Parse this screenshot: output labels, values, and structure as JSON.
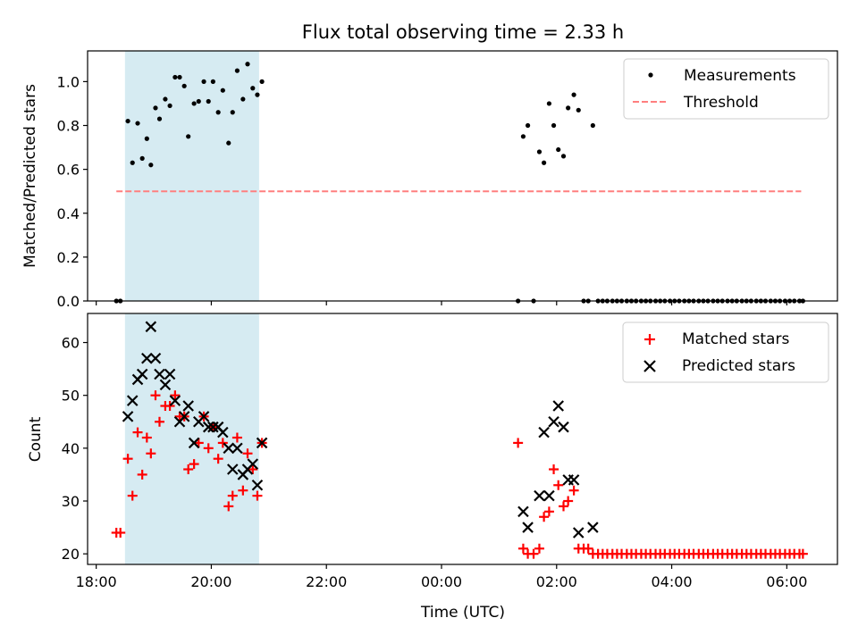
{
  "chart_data": {
    "title": "Flux total observing time = 2.33 h",
    "xlabel": "Time (UTC)",
    "x_ticks": [
      {
        "value": 18,
        "label": "18:00"
      },
      {
        "value": 20,
        "label": "20:00"
      },
      {
        "value": 22,
        "label": "22:00"
      },
      {
        "value": 24,
        "label": "00:00"
      },
      {
        "value": 26,
        "label": "02:00"
      },
      {
        "value": 28,
        "label": "04:00"
      },
      {
        "value": 30,
        "label": "06:00"
      }
    ],
    "xlim": [
      17.85,
      30.88
    ],
    "highlight_span": {
      "x_start": 18.5,
      "x_end": 20.83,
      "color": "#add8e6"
    },
    "panels": [
      {
        "type": "scatter",
        "ylabel": "Matched/Predicted stars",
        "ylim": [
          0,
          1.14
        ],
        "y_ticks": [
          0.0,
          0.2,
          0.4,
          0.6,
          0.8,
          1.0
        ],
        "y_tick_labels": [
          "0.0",
          "0.2",
          "0.4",
          "0.6",
          "0.8",
          "1.0"
        ],
        "legend": {
          "position": "top-right",
          "items": [
            "Measurements",
            "Threshold"
          ]
        },
        "series": [
          {
            "name": "Measurements",
            "marker": "dot",
            "color": "#000000",
            "points": [
              [
                18.35,
                0
              ],
              [
                18.42,
                0
              ],
              [
                18.55,
                0.82
              ],
              [
                18.63,
                0.63
              ],
              [
                18.72,
                0.81
              ],
              [
                18.8,
                0.65
              ],
              [
                18.88,
                0.74
              ],
              [
                18.95,
                0.62
              ],
              [
                19.03,
                0.88
              ],
              [
                19.1,
                0.83
              ],
              [
                19.2,
                0.92
              ],
              [
                19.28,
                0.89
              ],
              [
                19.37,
                1.02
              ],
              [
                19.45,
                1.02
              ],
              [
                19.53,
                0.98
              ],
              [
                19.6,
                0.75
              ],
              [
                19.7,
                0.9
              ],
              [
                19.78,
                0.91
              ],
              [
                19.87,
                1.0
              ],
              [
                19.95,
                0.91
              ],
              [
                20.03,
                1.0
              ],
              [
                20.12,
                0.86
              ],
              [
                20.2,
                0.96
              ],
              [
                20.3,
                0.72
              ],
              [
                20.37,
                0.86
              ],
              [
                20.45,
                1.05
              ],
              [
                20.55,
                0.92
              ],
              [
                20.63,
                1.08
              ],
              [
                20.72,
                0.97
              ],
              [
                20.8,
                0.94
              ],
              [
                20.88,
                1.0
              ],
              [
                25.33,
                0
              ],
              [
                25.42,
                0.75
              ],
              [
                25.5,
                0.8
              ],
              [
                25.6,
                0
              ],
              [
                25.7,
                0.68
              ],
              [
                25.78,
                0.63
              ],
              [
                25.87,
                0.9
              ],
              [
                25.95,
                0.8
              ],
              [
                26.03,
                0.69
              ],
              [
                26.12,
                0.66
              ],
              [
                26.2,
                0.88
              ],
              [
                26.3,
                0.94
              ],
              [
                26.38,
                0.87
              ],
              [
                26.47,
                0
              ],
              [
                26.55,
                0
              ],
              [
                26.63,
                0.8
              ],
              [
                26.72,
                0
              ],
              [
                26.8,
                0
              ],
              [
                26.88,
                0
              ],
              [
                26.97,
                0
              ],
              [
                27.05,
                0
              ],
              [
                27.13,
                0
              ],
              [
                27.22,
                0
              ],
              [
                27.3,
                0
              ],
              [
                27.38,
                0
              ],
              [
                27.47,
                0
              ],
              [
                27.55,
                0
              ],
              [
                27.63,
                0
              ],
              [
                27.72,
                0
              ],
              [
                27.8,
                0
              ],
              [
                27.88,
                0
              ],
              [
                27.97,
                0
              ],
              [
                28.05,
                0
              ],
              [
                28.13,
                0
              ],
              [
                28.22,
                0
              ],
              [
                28.3,
                0
              ],
              [
                28.38,
                0
              ],
              [
                28.47,
                0
              ],
              [
                28.55,
                0
              ],
              [
                28.63,
                0
              ],
              [
                28.72,
                0
              ],
              [
                28.8,
                0
              ],
              [
                28.88,
                0
              ],
              [
                28.97,
                0
              ],
              [
                29.05,
                0
              ],
              [
                29.13,
                0
              ],
              [
                29.22,
                0
              ],
              [
                29.3,
                0
              ],
              [
                29.38,
                0
              ],
              [
                29.47,
                0
              ],
              [
                29.55,
                0
              ],
              [
                29.63,
                0
              ],
              [
                29.72,
                0
              ],
              [
                29.8,
                0
              ],
              [
                29.88,
                0
              ],
              [
                29.97,
                0
              ],
              [
                30.05,
                0
              ],
              [
                30.13,
                0
              ],
              [
                30.22,
                0
              ],
              [
                30.28,
                0
              ]
            ]
          },
          {
            "name": "Threshold",
            "marker": "dashed-line",
            "color": "#ff7f7f",
            "points": [
              [
                18.35,
                0.5
              ],
              [
                30.25,
                0.5
              ]
            ]
          }
        ]
      },
      {
        "type": "scatter",
        "ylabel": "Count",
        "ylim": [
          18,
          65.5
        ],
        "y_ticks": [
          20,
          30,
          40,
          50,
          60
        ],
        "y_tick_labels": [
          "20",
          "30",
          "40",
          "50",
          "60"
        ],
        "legend": {
          "position": "top-right",
          "items": [
            "Matched stars",
            "Predicted stars"
          ]
        },
        "series": [
          {
            "name": "Matched stars",
            "marker": "plus",
            "color": "#ff0000",
            "points": [
              [
                18.35,
                24
              ],
              [
                18.42,
                24
              ],
              [
                18.55,
                38
              ],
              [
                18.63,
                31
              ],
              [
                18.72,
                43
              ],
              [
                18.8,
                35
              ],
              [
                18.88,
                42
              ],
              [
                18.95,
                39
              ],
              [
                19.03,
                50
              ],
              [
                19.1,
                45
              ],
              [
                19.2,
                48
              ],
              [
                19.28,
                48
              ],
              [
                19.37,
                50
              ],
              [
                19.45,
                46
              ],
              [
                19.53,
                46
              ],
              [
                19.6,
                36
              ],
              [
                19.7,
                37
              ],
              [
                19.78,
                41
              ],
              [
                19.87,
                46
              ],
              [
                19.95,
                40
              ],
              [
                20.03,
                44
              ],
              [
                20.12,
                38
              ],
              [
                20.2,
                41
              ],
              [
                20.3,
                29
              ],
              [
                20.37,
                31
              ],
              [
                20.45,
                42
              ],
              [
                20.55,
                32
              ],
              [
                20.63,
                39
              ],
              [
                20.72,
                36
              ],
              [
                20.8,
                31
              ],
              [
                20.88,
                41
              ],
              [
                25.33,
                41
              ],
              [
                25.42,
                21
              ],
              [
                25.5,
                20
              ],
              [
                25.6,
                20
              ],
              [
                25.7,
                21
              ],
              [
                25.78,
                27
              ],
              [
                25.87,
                28
              ],
              [
                25.95,
                36
              ],
              [
                26.03,
                33
              ],
              [
                26.12,
                29
              ],
              [
                26.2,
                30
              ],
              [
                26.3,
                32
              ],
              [
                26.38,
                21
              ],
              [
                26.47,
                21
              ],
              [
                26.55,
                21
              ],
              [
                26.63,
                20
              ],
              [
                26.72,
                20
              ],
              [
                26.8,
                20
              ],
              [
                26.88,
                20
              ],
              [
                26.97,
                20
              ],
              [
                27.05,
                20
              ],
              [
                27.13,
                20
              ],
              [
                27.22,
                20
              ],
              [
                27.3,
                20
              ],
              [
                27.38,
                20
              ],
              [
                27.47,
                20
              ],
              [
                27.55,
                20
              ],
              [
                27.63,
                20
              ],
              [
                27.72,
                20
              ],
              [
                27.8,
                20
              ],
              [
                27.88,
                20
              ],
              [
                27.97,
                20
              ],
              [
                28.05,
                20
              ],
              [
                28.13,
                20
              ],
              [
                28.22,
                20
              ],
              [
                28.3,
                20
              ],
              [
                28.38,
                20
              ],
              [
                28.47,
                20
              ],
              [
                28.55,
                20
              ],
              [
                28.63,
                20
              ],
              [
                28.72,
                20
              ],
              [
                28.8,
                20
              ],
              [
                28.88,
                20
              ],
              [
                28.97,
                20
              ],
              [
                29.05,
                20
              ],
              [
                29.13,
                20
              ],
              [
                29.22,
                20
              ],
              [
                29.3,
                20
              ],
              [
                29.38,
                20
              ],
              [
                29.47,
                20
              ],
              [
                29.55,
                20
              ],
              [
                29.63,
                20
              ],
              [
                29.72,
                20
              ],
              [
                29.8,
                20
              ],
              [
                29.88,
                20
              ],
              [
                29.97,
                20
              ],
              [
                30.05,
                20
              ],
              [
                30.13,
                20
              ],
              [
                30.22,
                20
              ],
              [
                30.28,
                20
              ]
            ]
          },
          {
            "name": "Predicted stars",
            "marker": "x",
            "color": "#000000",
            "points": [
              [
                18.55,
                46
              ],
              [
                18.63,
                49
              ],
              [
                18.72,
                53
              ],
              [
                18.8,
                54
              ],
              [
                18.88,
                57
              ],
              [
                18.95,
                63
              ],
              [
                19.03,
                57
              ],
              [
                19.1,
                54
              ],
              [
                19.2,
                52
              ],
              [
                19.28,
                54
              ],
              [
                19.37,
                49
              ],
              [
                19.45,
                45
              ],
              [
                19.53,
                46
              ],
              [
                19.6,
                48
              ],
              [
                19.7,
                41
              ],
              [
                19.78,
                45
              ],
              [
                19.87,
                46
              ],
              [
                19.95,
                44
              ],
              [
                20.03,
                44
              ],
              [
                20.12,
                44
              ],
              [
                20.2,
                43
              ],
              [
                20.3,
                40
              ],
              [
                20.37,
                36
              ],
              [
                20.45,
                40
              ],
              [
                20.55,
                35
              ],
              [
                20.63,
                36
              ],
              [
                20.72,
                37
              ],
              [
                20.8,
                33
              ],
              [
                20.88,
                41
              ],
              [
                25.42,
                28
              ],
              [
                25.5,
                25
              ],
              [
                25.7,
                31
              ],
              [
                25.78,
                43
              ],
              [
                25.87,
                31
              ],
              [
                25.95,
                45
              ],
              [
                26.03,
                48
              ],
              [
                26.12,
                44
              ],
              [
                26.2,
                34
              ],
              [
                26.3,
                34
              ],
              [
                26.38,
                24
              ],
              [
                26.63,
                25
              ]
            ]
          }
        ]
      }
    ]
  }
}
